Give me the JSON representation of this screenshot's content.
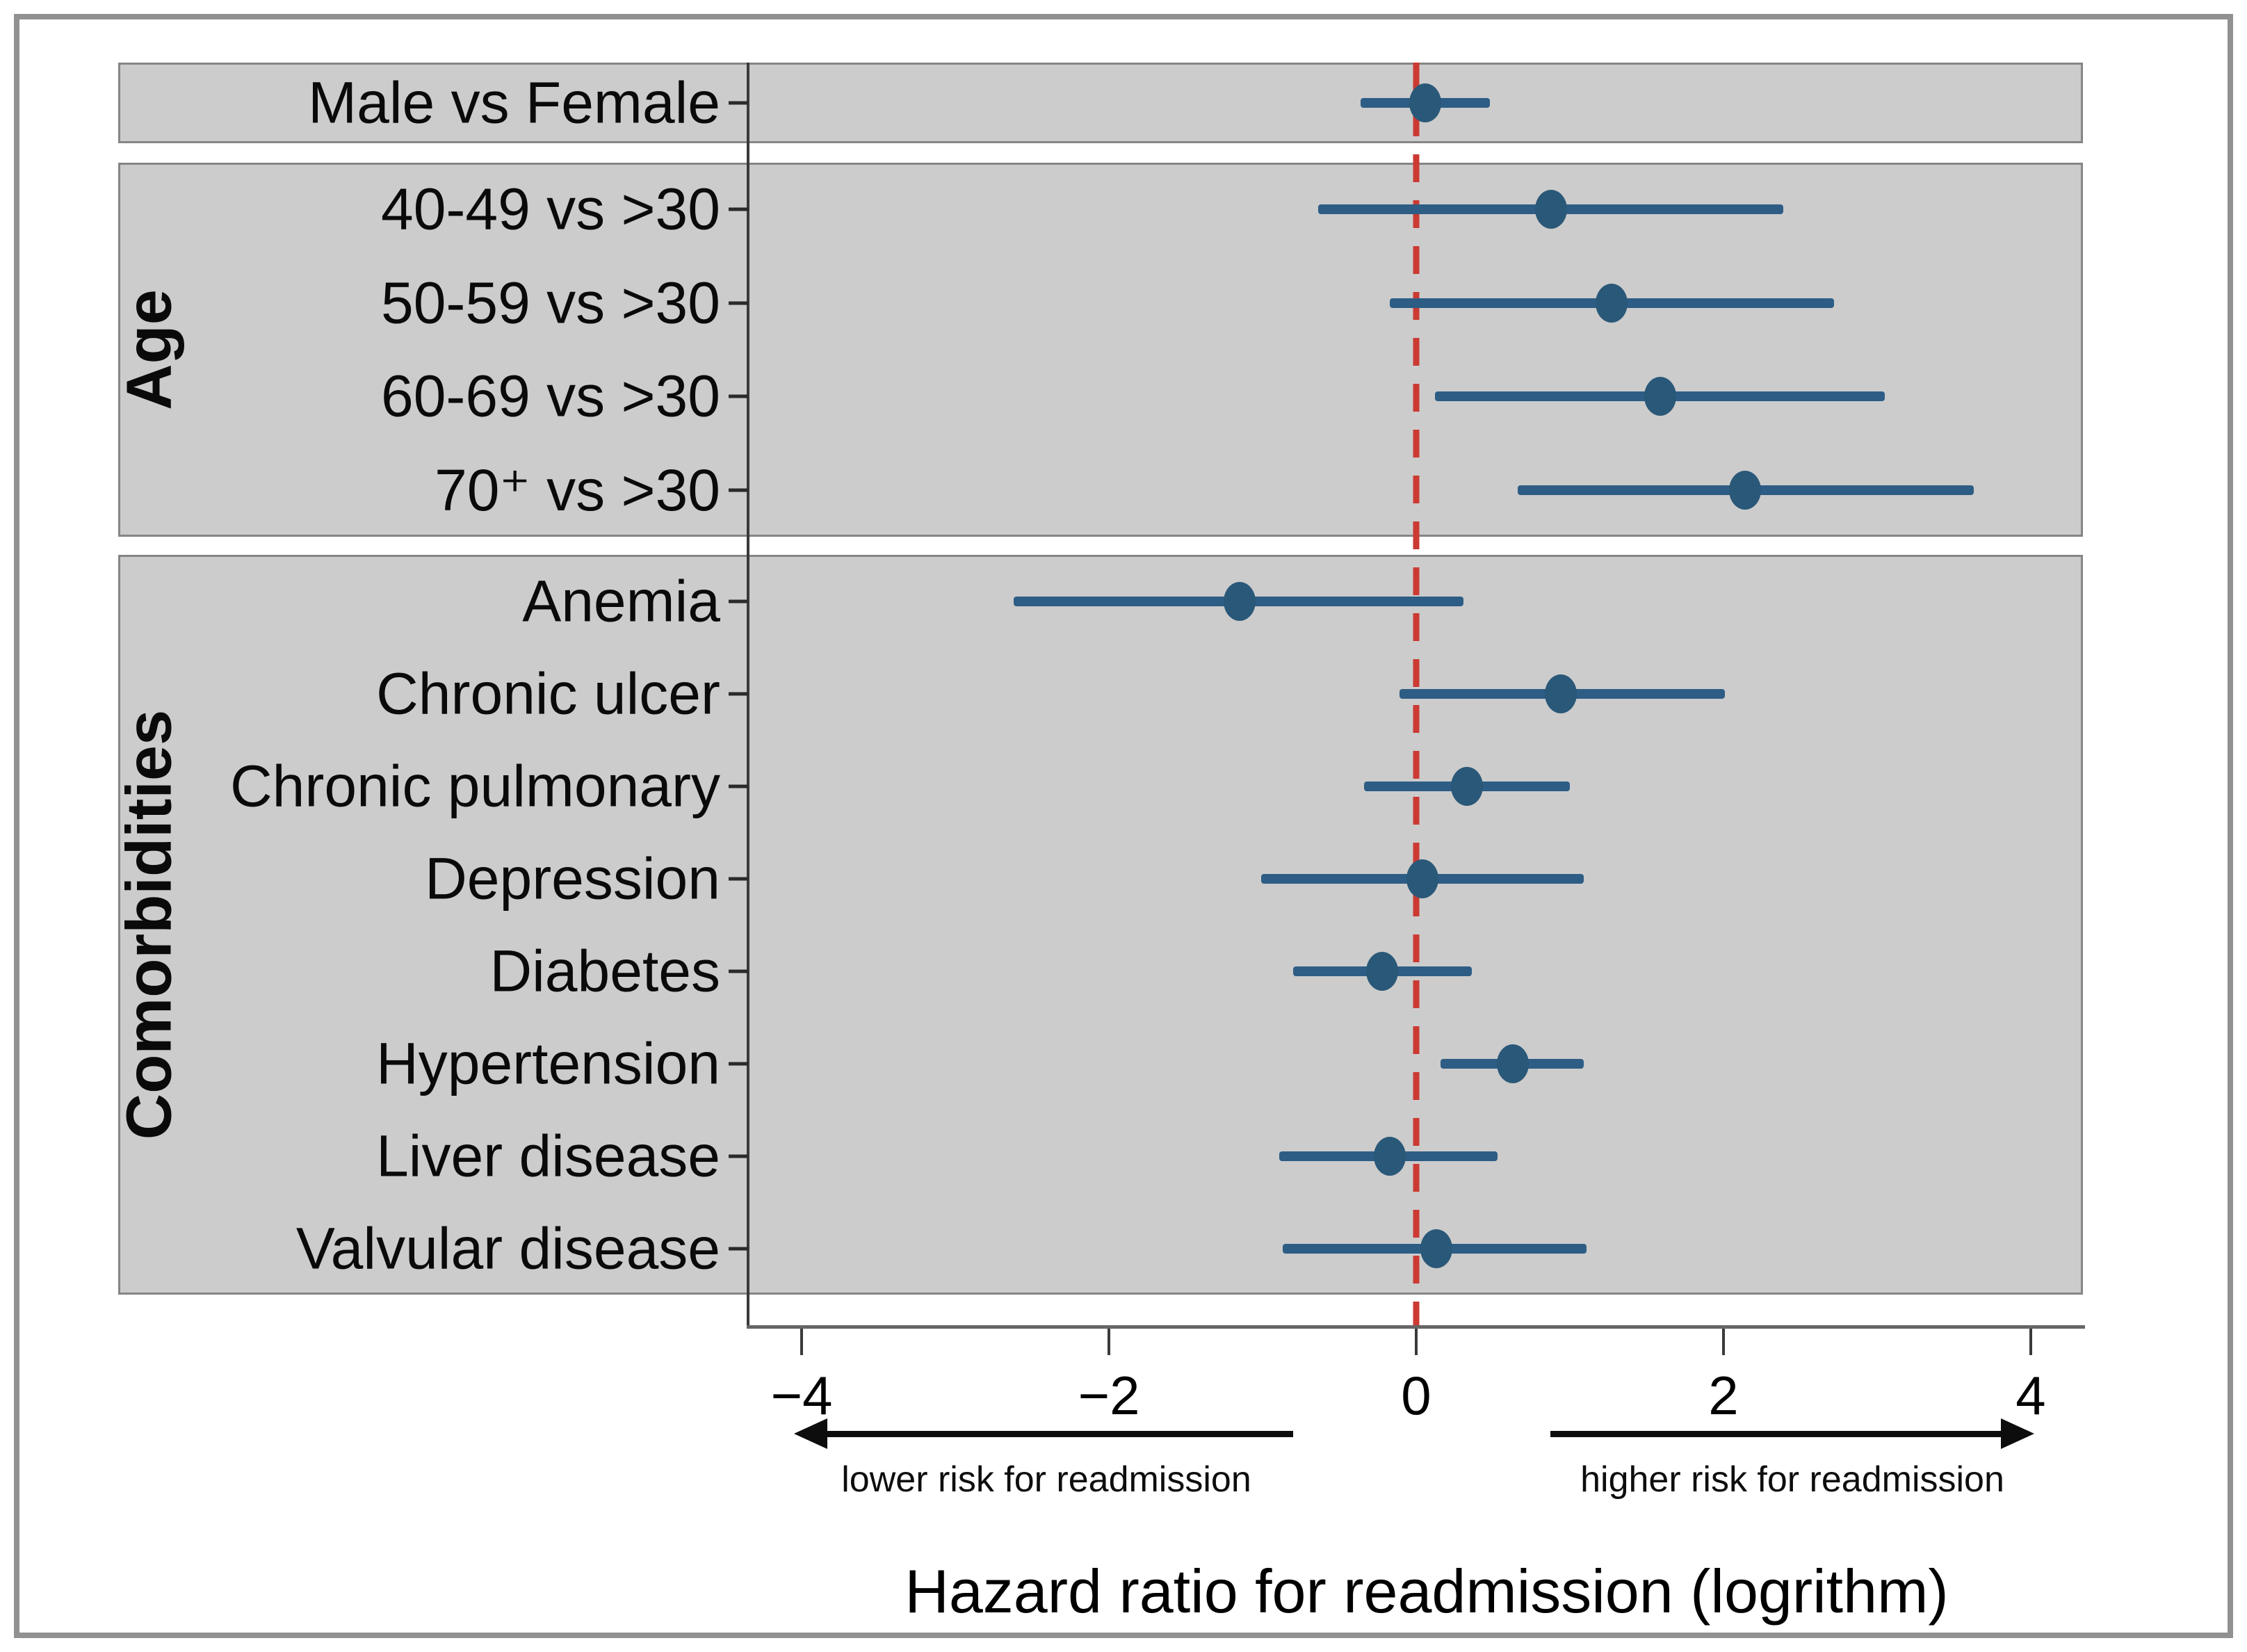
{
  "chart_data": {
    "type": "forest",
    "title": "Hazard ratio for readmission (logrithm)",
    "xlabel": "Hazard ratio for readmission (logrithm)",
    "ylabel": "",
    "x_axis": {
      "tick_labels": [
        "−4",
        "−2",
        "0",
        "2",
        "4"
      ],
      "tick_values": [
        -4,
        -2,
        0,
        2,
        4
      ],
      "xlim": [
        -4.35,
        4.35
      ],
      "grid": false
    },
    "zero_reference_value": 0,
    "legend_position": "none",
    "annotations": {
      "lower_label": "lower risk for readmission",
      "higher_label": "higher risk for readmission"
    },
    "groups": [
      {
        "group_label": "",
        "rows": [
          {
            "label": "Male vs Female",
            "estimate": 0.06,
            "ci_low": -0.36,
            "ci_high": 0.48
          }
        ]
      },
      {
        "group_label": "Age",
        "rows": [
          {
            "label": "40-49 vs >30",
            "estimate": 0.88,
            "ci_low": -0.64,
            "ci_high": 2.39
          },
          {
            "label": "50-59 vs >30",
            "estimate": 1.27,
            "ci_low": -0.17,
            "ci_high": 2.72
          },
          {
            "label": "60-69 vs >30",
            "estimate": 1.59,
            "ci_low": 0.12,
            "ci_high": 3.05
          },
          {
            "label": "70⁺ vs >30",
            "estimate": 2.14,
            "ci_low": 0.66,
            "ci_high": 3.63
          }
        ]
      },
      {
        "group_label": "Comorbidities",
        "rows": [
          {
            "label": "Anemia",
            "estimate": -1.15,
            "ci_low": -2.62,
            "ci_high": 0.31
          },
          {
            "label": "Chronic ulcer",
            "estimate": 0.94,
            "ci_low": -0.11,
            "ci_high": 2.01
          },
          {
            "label": "Chronic pulmonary",
            "estimate": 0.33,
            "ci_low": -0.34,
            "ci_high": 1.0
          },
          {
            "label": "Depression",
            "estimate": 0.04,
            "ci_low": -1.01,
            "ci_high": 1.09
          },
          {
            "label": "Diabetes",
            "estimate": -0.22,
            "ci_low": -0.8,
            "ci_high": 0.36
          },
          {
            "label": "Hypertension",
            "estimate": 0.63,
            "ci_low": 0.16,
            "ci_high": 1.09
          },
          {
            "label": "Liver disease",
            "estimate": -0.17,
            "ci_low": -0.89,
            "ci_high": 0.53
          },
          {
            "label": "Valvular disease",
            "estimate": 0.13,
            "ci_low": -0.87,
            "ci_high": 1.11
          }
        ]
      }
    ],
    "colors": {
      "marker": "#2a5878",
      "ci_line": "#2d5d85",
      "zero_line": "#cb3a33",
      "panel_background": "#cccccc",
      "panel_border": "#858585",
      "axis": "#3a3a3a"
    }
  }
}
